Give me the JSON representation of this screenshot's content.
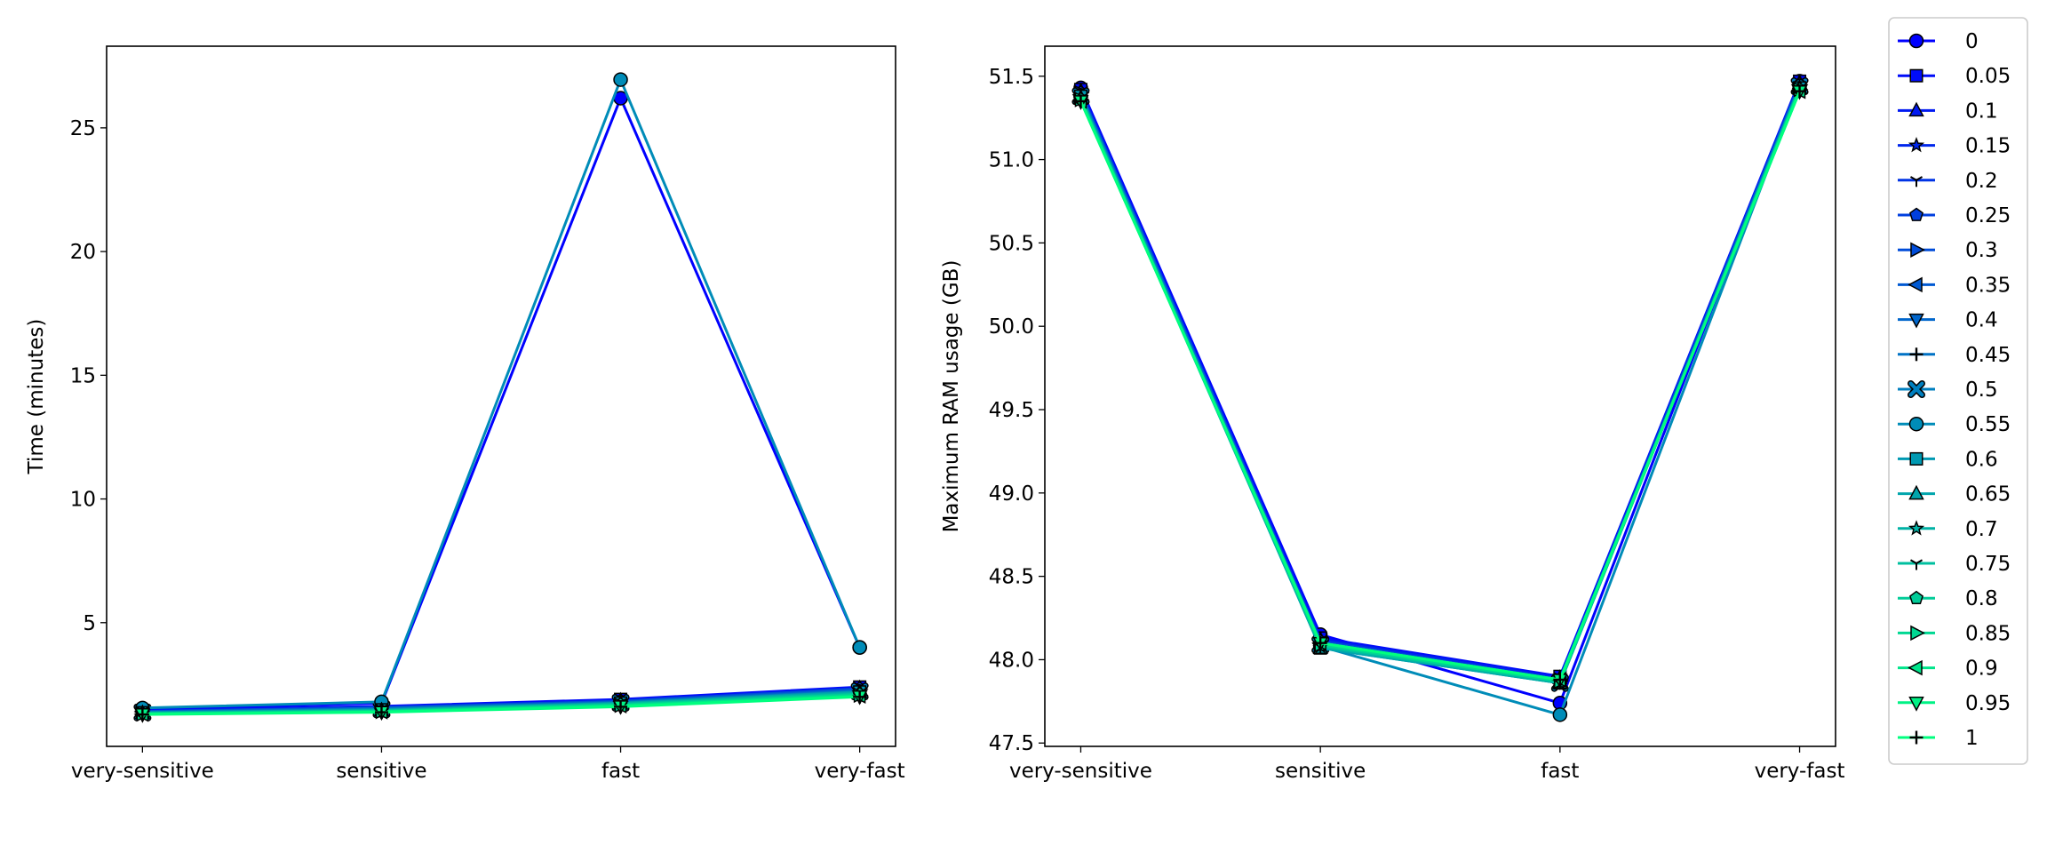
{
  "chart_data": [
    {
      "type": "line",
      "categories": [
        "very-sensitive",
        "sensitive",
        "fast",
        "very-fast"
      ],
      "xlabel": "",
      "ylabel": "Time (minutes)",
      "ylim": [
        0.0,
        28.3
      ],
      "yticks": [
        5,
        10,
        15,
        20,
        25
      ],
      "grid": false,
      "series": [
        {
          "name": "0",
          "values": [
            1.5,
            1.75,
            26.2,
            4.0
          ]
        },
        {
          "name": "0.05",
          "values": [
            1.45,
            1.62,
            1.9,
            2.4
          ]
        },
        {
          "name": "0.1",
          "values": [
            1.42,
            1.58,
            1.85,
            2.35
          ]
        },
        {
          "name": "0.15",
          "values": [
            1.4,
            1.55,
            1.82,
            2.3
          ]
        },
        {
          "name": "0.2",
          "values": [
            1.4,
            1.55,
            1.8,
            2.28
          ]
        },
        {
          "name": "0.25",
          "values": [
            1.42,
            1.57,
            1.83,
            2.33
          ]
        },
        {
          "name": "0.3",
          "values": [
            1.41,
            1.56,
            1.82,
            2.31
          ]
        },
        {
          "name": "0.35",
          "values": [
            1.4,
            1.55,
            1.8,
            2.28
          ]
        },
        {
          "name": "0.4",
          "values": [
            1.38,
            1.52,
            1.78,
            2.25
          ]
        },
        {
          "name": "0.45",
          "values": [
            1.38,
            1.52,
            1.78,
            2.24
          ]
        },
        {
          "name": "0.5",
          "values": [
            1.37,
            1.5,
            1.76,
            2.22
          ]
        },
        {
          "name": "0.55",
          "values": [
            1.55,
            1.8,
            26.95,
            4.0
          ]
        },
        {
          "name": "0.6",
          "values": [
            1.36,
            1.48,
            1.75,
            2.2
          ]
        },
        {
          "name": "0.65",
          "values": [
            1.35,
            1.46,
            1.73,
            2.18
          ]
        },
        {
          "name": "0.7",
          "values": [
            1.34,
            1.45,
            1.72,
            2.15
          ]
        },
        {
          "name": "0.75",
          "values": [
            1.33,
            1.44,
            1.7,
            2.12
          ]
        },
        {
          "name": "0.8",
          "values": [
            1.32,
            1.42,
            1.68,
            2.1
          ]
        },
        {
          "name": "0.85",
          "values": [
            1.31,
            1.41,
            1.66,
            2.07
          ]
        },
        {
          "name": "0.9",
          "values": [
            1.3,
            1.4,
            1.64,
            2.04
          ]
        },
        {
          "name": "0.95",
          "values": [
            1.3,
            1.39,
            1.62,
            2.02
          ]
        },
        {
          "name": "1",
          "values": [
            1.29,
            1.38,
            1.6,
            2.0
          ]
        }
      ]
    },
    {
      "type": "line",
      "categories": [
        "very-sensitive",
        "sensitive",
        "fast",
        "very-fast"
      ],
      "xlabel": "",
      "ylabel": "Maximum RAM usage (GB)",
      "ylim": [
        47.48,
        51.68
      ],
      "yticks": [
        47.5,
        48.0,
        48.5,
        49.0,
        49.5,
        50.0,
        50.5,
        51.0,
        51.5
      ],
      "grid": false,
      "series": [
        {
          "name": "0",
          "values": [
            51.43,
            48.15,
            47.74,
            51.47
          ]
        },
        {
          "name": "0.05",
          "values": [
            51.42,
            48.13,
            47.9,
            51.47
          ]
        },
        {
          "name": "0.1",
          "values": [
            51.41,
            48.12,
            47.89,
            51.46
          ]
        },
        {
          "name": "0.15",
          "values": [
            51.41,
            48.12,
            47.89,
            51.46
          ]
        },
        {
          "name": "0.2",
          "values": [
            51.4,
            48.11,
            47.88,
            51.46
          ]
        },
        {
          "name": "0.25",
          "values": [
            51.4,
            48.11,
            47.88,
            51.45
          ]
        },
        {
          "name": "0.3",
          "values": [
            51.4,
            48.11,
            47.88,
            51.45
          ]
        },
        {
          "name": "0.35",
          "values": [
            51.39,
            48.1,
            47.87,
            51.45
          ]
        },
        {
          "name": "0.4",
          "values": [
            51.39,
            48.1,
            47.87,
            51.44
          ]
        },
        {
          "name": "0.45",
          "values": [
            51.39,
            48.1,
            47.87,
            51.44
          ]
        },
        {
          "name": "0.5",
          "values": [
            51.38,
            48.09,
            47.86,
            51.44
          ]
        },
        {
          "name": "0.55",
          "values": [
            51.38,
            48.08,
            47.67,
            51.44
          ]
        },
        {
          "name": "0.6",
          "values": [
            51.38,
            48.07,
            47.86,
            51.43
          ]
        },
        {
          "name": "0.65",
          "values": [
            51.37,
            48.07,
            47.86,
            51.43
          ]
        },
        {
          "name": "0.7",
          "values": [
            51.37,
            48.08,
            47.86,
            51.43
          ]
        },
        {
          "name": "0.75",
          "values": [
            51.36,
            48.08,
            47.87,
            51.42
          ]
        },
        {
          "name": "0.8",
          "values": [
            51.36,
            48.09,
            47.87,
            51.42
          ]
        },
        {
          "name": "0.85",
          "values": [
            51.36,
            48.09,
            47.87,
            51.42
          ]
        },
        {
          "name": "0.9",
          "values": [
            51.35,
            48.1,
            47.88,
            51.41
          ]
        },
        {
          "name": "0.95",
          "values": [
            51.35,
            48.1,
            47.88,
            51.41
          ]
        },
        {
          "name": "1",
          "values": [
            51.35,
            48.1,
            47.88,
            51.41
          ]
        }
      ]
    }
  ],
  "legend": {
    "placement": "right, outside"
  },
  "style": {
    "series_colors": [
      "#0000ff",
      "#000cf9",
      "#0019f2",
      "#0026ec",
      "#0033e5",
      "#003fdf",
      "#004cd9",
      "#0059d2",
      "#0066cc",
      "#0072c5",
      "#007fbf",
      "#008cb8",
      "#0099b2",
      "#00a5ac",
      "#00b2a5",
      "#00bf9f",
      "#00cc98",
      "#00d892",
      "#00e58b",
      "#00f285",
      "#00ff7f"
    ],
    "markers": [
      "circle",
      "square",
      "triangle-up",
      "star",
      "tri-down",
      "pentagon",
      "triangle-right",
      "triangle-left",
      "triangle-down",
      "plus",
      "x-filled",
      "circle",
      "square",
      "triangle-up",
      "star",
      "tri-down",
      "pentagon",
      "triangle-right",
      "triangle-left",
      "triangle-down",
      "plus"
    ],
    "marker_edge": "#000000"
  }
}
